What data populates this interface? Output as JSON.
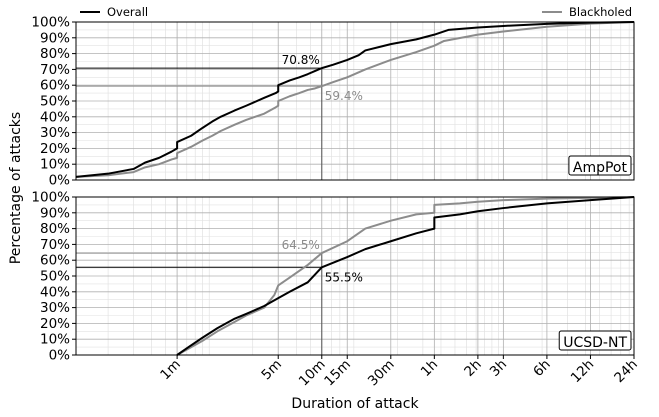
{
  "chart_data": {
    "type": "line",
    "xlabel": "Duration of attack",
    "ylabel": "Percentage of attacks",
    "x_scale": "log",
    "x_range": [
      "00:00:12",
      "24:00:00"
    ],
    "x_ticks": [
      {
        "label": "1m",
        "duration": "00:01:00"
      },
      {
        "label": "5m",
        "duration": "00:05:00"
      },
      {
        "label": "10m",
        "duration": "00:10:00"
      },
      {
        "label": "15m",
        "duration": "00:15:00"
      },
      {
        "label": "30m",
        "duration": "00:30:00"
      },
      {
        "label": "1h",
        "duration": "01:00:00"
      },
      {
        "label": "2h",
        "duration": "02:00:00"
      },
      {
        "label": "3h",
        "duration": "03:00:00"
      },
      {
        "label": "6h",
        "duration": "06:00:00"
      },
      {
        "label": "12h",
        "duration": "12:00:00"
      },
      {
        "label": "24h",
        "duration": "24:00:00"
      }
    ],
    "y_ticks": [
      "0%",
      "10%",
      "20%",
      "30%",
      "40%",
      "50%",
      "60%",
      "70%",
      "80%",
      "90%",
      "100%"
    ],
    "ylim": [
      0,
      100
    ],
    "grid": true,
    "legend": {
      "placement": "top",
      "entries": [
        {
          "name": "Overall",
          "color": "#000000"
        },
        {
          "name": "Blackholed",
          "color": "#8c8c8c"
        }
      ]
    },
    "panels": [
      {
        "label": "AmpPot",
        "series": [
          {
            "name": "Overall",
            "color": "#000000",
            "points": [
              [
                "00:00:12",
                2
              ],
              [
                "00:00:20",
                4
              ],
              [
                "00:00:30",
                7
              ],
              [
                "00:00:36",
                11
              ],
              [
                "00:00:45",
                14
              ],
              [
                "00:00:55",
                18
              ],
              [
                "00:01:00",
                20
              ],
              [
                "00:01:00",
                24
              ],
              [
                "00:01:15",
                28
              ],
              [
                "00:01:30",
                33
              ],
              [
                "00:01:45",
                37
              ],
              [
                "00:02:00",
                40
              ],
              [
                "00:02:30",
                44
              ],
              [
                "00:03:00",
                47
              ],
              [
                "00:04:00",
                52
              ],
              [
                "00:04:48",
                55
              ],
              [
                "00:05:00",
                56
              ],
              [
                "00:05:00",
                60
              ],
              [
                "00:06:00",
                63
              ],
              [
                "00:07:00",
                65
              ],
              [
                "00:08:00",
                67
              ],
              [
                "00:09:00",
                69
              ],
              [
                "00:10:00",
                70.8
              ],
              [
                "00:12:00",
                73
              ],
              [
                "00:15:00",
                76
              ],
              [
                "00:18:00",
                79
              ],
              [
                "00:20:00",
                82
              ],
              [
                "00:30:00",
                86
              ],
              [
                "00:45:00",
                89
              ],
              [
                "01:00:00",
                92
              ],
              [
                "01:15:00",
                95
              ],
              [
                "02:00:00",
                96.5
              ],
              [
                "03:00:00",
                97.5
              ],
              [
                "06:00:00",
                98.8
              ],
              [
                "12:00:00",
                99.6
              ],
              [
                "24:00:00",
                100
              ]
            ]
          },
          {
            "name": "Blackholed",
            "color": "#8c8c8c",
            "points": [
              [
                "00:00:12",
                2
              ],
              [
                "00:00:20",
                3
              ],
              [
                "00:00:30",
                5
              ],
              [
                "00:00:36",
                8
              ],
              [
                "00:00:45",
                10
              ],
              [
                "00:00:55",
                13
              ],
              [
                "00:01:00",
                14
              ],
              [
                "00:01:00",
                17
              ],
              [
                "00:01:15",
                21
              ],
              [
                "00:01:30",
                25
              ],
              [
                "00:01:45",
                28
              ],
              [
                "00:02:00",
                31
              ],
              [
                "00:02:30",
                35
              ],
              [
                "00:03:00",
                38
              ],
              [
                "00:04:00",
                42
              ],
              [
                "00:04:48",
                46
              ],
              [
                "00:05:00",
                47
              ],
              [
                "00:05:00",
                50
              ],
              [
                "00:06:00",
                53
              ],
              [
                "00:07:00",
                55
              ],
              [
                "00:08:00",
                57
              ],
              [
                "00:09:00",
                58
              ],
              [
                "00:10:00",
                59.4
              ],
              [
                "00:12:00",
                62
              ],
              [
                "00:15:00",
                65
              ],
              [
                "00:20:00",
                70
              ],
              [
                "00:30:00",
                76
              ],
              [
                "00:45:00",
                81
              ],
              [
                "01:00:00",
                85
              ],
              [
                "01:10:00",
                88
              ],
              [
                "02:00:00",
                92
              ],
              [
                "03:00:00",
                94
              ],
              [
                "06:00:00",
                97
              ],
              [
                "12:00:00",
                99
              ],
              [
                "24:00:00",
                100
              ]
            ]
          }
        ],
        "annotations": [
          {
            "text": "70.8%",
            "value": 70.8,
            "series": "Overall"
          },
          {
            "text": "59.4%",
            "value": 59.4,
            "series": "Blackholed"
          }
        ]
      },
      {
        "label": "UCSD-NT",
        "series": [
          {
            "name": "Overall",
            "color": "#000000",
            "points": [
              [
                "00:01:00",
                0
              ],
              [
                "00:01:12",
                5
              ],
              [
                "00:01:30",
                11
              ],
              [
                "00:01:54",
                17
              ],
              [
                "00:02:30",
                23
              ],
              [
                "00:03:00",
                26
              ],
              [
                "00:04:00",
                31
              ],
              [
                "00:05:00",
                36
              ],
              [
                "00:06:00",
                40
              ],
              [
                "00:08:00",
                46
              ],
              [
                "00:10:00",
                55.5
              ],
              [
                "00:15:00",
                62
              ],
              [
                "00:20:00",
                67
              ],
              [
                "00:30:00",
                72
              ],
              [
                "00:45:00",
                77
              ],
              [
                "01:00:00",
                80
              ],
              [
                "01:00:00",
                87
              ],
              [
                "01:30:00",
                89
              ],
              [
                "02:00:00",
                91
              ],
              [
                "03:00:00",
                93
              ],
              [
                "06:00:00",
                96
              ],
              [
                "12:00:00",
                98
              ],
              [
                "24:00:00",
                100
              ]
            ]
          },
          {
            "name": "Blackholed",
            "color": "#8c8c8c",
            "points": [
              [
                "00:01:00",
                0
              ],
              [
                "00:01:12",
                4
              ],
              [
                "00:01:30",
                9
              ],
              [
                "00:01:54",
                15
              ],
              [
                "00:02:30",
                21
              ],
              [
                "00:03:00",
                25
              ],
              [
                "00:04:00",
                30
              ],
              [
                "00:04:42",
                38
              ],
              [
                "00:05:00",
                44
              ],
              [
                "00:06:00",
                49
              ],
              [
                "00:08:00",
                57
              ],
              [
                "00:10:00",
                64.5
              ],
              [
                "00:15:00",
                72
              ],
              [
                "00:20:00",
                80
              ],
              [
                "00:30:00",
                85
              ],
              [
                "00:45:00",
                89
              ],
              [
                "01:00:00",
                90
              ],
              [
                "01:00:00",
                95
              ],
              [
                "01:30:00",
                96
              ],
              [
                "02:00:00",
                97
              ],
              [
                "03:00:00",
                98
              ],
              [
                "06:00:00",
                99
              ],
              [
                "24:00:00",
                100
              ]
            ]
          }
        ],
        "annotations": [
          {
            "text": "64.5%",
            "value": 64.5,
            "series": "Blackholed"
          },
          {
            "text": "55.5%",
            "value": 55.5,
            "series": "Overall"
          }
        ]
      }
    ],
    "marker_duration": "00:10:00"
  }
}
